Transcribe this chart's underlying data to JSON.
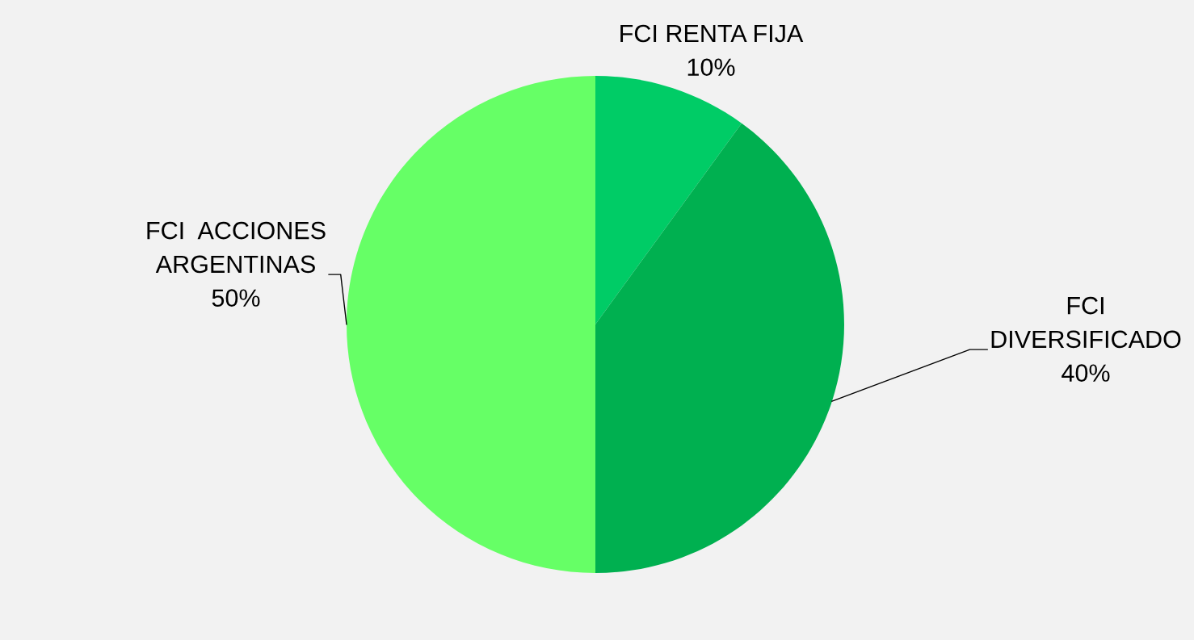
{
  "chart_data": {
    "type": "pie",
    "categories": [
      "FCI RENTA FIJA",
      "FCI DIVERSIFICADO",
      "FCI  ACCIONES ARGENTINAS"
    ],
    "values": [
      10,
      40,
      50
    ],
    "colors": [
      "#00cc66",
      "#00b050",
      "#66ff66"
    ],
    "value_labels": [
      "10%",
      "40%",
      "50%"
    ]
  }
}
